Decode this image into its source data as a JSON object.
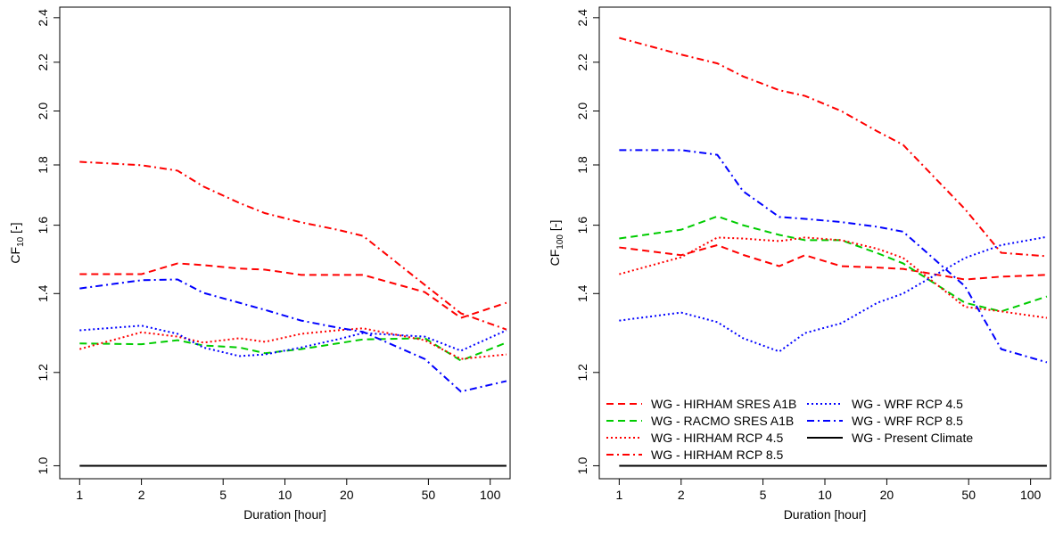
{
  "chart_data": [
    {
      "type": "line",
      "xlabel": "Duration [hour]",
      "ylabel": [
        "CF",
        "10",
        " [-]"
      ],
      "xlog": true,
      "ylog": true,
      "x": [
        1,
        2,
        3,
        4,
        6,
        8,
        12,
        18,
        24,
        48,
        72,
        120
      ],
      "xlim": [
        0.8,
        125
      ],
      "xticks": [
        1,
        2,
        5,
        10,
        20,
        50,
        100
      ],
      "ylim": [
        0.975,
        2.45
      ],
      "yticks": [
        {
          "value": 1,
          "label": "1.0"
        },
        1.2,
        1.4,
        1.6,
        1.8,
        {
          "value": 2,
          "label": "2.0"
        },
        2.2,
        2.4
      ],
      "series": [
        {
          "color": "#ff0000",
          "linestyle": "dashed",
          "values": [
            1.454,
            1.454,
            1.485,
            1.48,
            1.47,
            1.467,
            1.452,
            1.452,
            1.452,
            1.404,
            1.335,
            1.375
          ]
        },
        {
          "color": "#00cc00",
          "linestyle": "dashed",
          "values": [
            1.27,
            1.268,
            1.278,
            1.265,
            1.26,
            1.246,
            1.256,
            1.27,
            1.28,
            1.283,
            1.228,
            1.272
          ]
        },
        {
          "color": "#ff0000",
          "linestyle": "dotted",
          "values": [
            1.256,
            1.298,
            1.287,
            1.272,
            1.283,
            1.274,
            1.294,
            1.303,
            1.308,
            1.278,
            1.232,
            1.243
          ]
        },
        {
          "color": "#ff0000",
          "linestyle": "dotdash",
          "values": [
            1.811,
            1.799,
            1.78,
            1.726,
            1.671,
            1.638,
            1.609,
            1.586,
            1.567,
            1.424,
            1.347,
            1.305
          ]
        },
        {
          "color": "#0000ff",
          "linestyle": "dotted",
          "values": [
            1.303,
            1.315,
            1.294,
            1.26,
            1.239,
            1.243,
            1.26,
            1.28,
            1.296,
            1.287,
            1.252,
            1.303
          ]
        },
        {
          "color": "#0000ff",
          "linestyle": "dotdash",
          "values": [
            1.414,
            1.437,
            1.439,
            1.402,
            1.375,
            1.356,
            1.328,
            1.31,
            1.299,
            1.232,
            1.156,
            1.18
          ]
        },
        {
          "color": "#000000",
          "linestyle": "solid",
          "values": [
            1,
            1,
            1,
            1,
            1,
            1,
            1,
            1,
            1,
            1,
            1,
            1
          ]
        }
      ]
    },
    {
      "type": "line",
      "xlabel": "Duration [hour]",
      "ylabel": [
        "CF",
        "100",
        " [-]"
      ],
      "xlog": true,
      "ylog": true,
      "legend": "bottomleft",
      "x": [
        1,
        2,
        3,
        4,
        6,
        8,
        12,
        18,
        24,
        48,
        72,
        120
      ],
      "xlim": [
        0.8,
        125
      ],
      "xticks": [
        1,
        2,
        5,
        10,
        20,
        50,
        100
      ],
      "ylim": [
        0.975,
        2.45
      ],
      "yticks": [
        {
          "value": 1,
          "label": "1.0"
        },
        1.2,
        1.4,
        1.6,
        1.8,
        {
          "value": 2,
          "label": "2.0"
        },
        2.2,
        2.4
      ],
      "series": [
        {
          "name": "WG - HIRHAM SRES A1B",
          "color": "#ff0000",
          "linestyle": "dashed",
          "values": [
            1.532,
            1.509,
            1.539,
            1.51,
            1.477,
            1.509,
            1.477,
            1.473,
            1.469,
            1.439,
            1.447,
            1.452
          ]
        },
        {
          "name": "WG - RACMO SRES A1B",
          "color": "#00cc00",
          "linestyle": "dashed",
          "values": [
            1.559,
            1.586,
            1.628,
            1.6,
            1.57,
            1.554,
            1.554,
            1.515,
            1.485,
            1.375,
            1.352,
            1.392
          ]
        },
        {
          "name": "WG - HIRHAM RCP 4.5",
          "color": "#ff0000",
          "linestyle": "dotted",
          "values": [
            1.454,
            1.503,
            1.562,
            1.559,
            1.551,
            1.562,
            1.554,
            1.528,
            1.501,
            1.364,
            1.352,
            1.335
          ]
        },
        {
          "name": "WG - HIRHAM RCP 8.5",
          "color": "#ff0000",
          "linestyle": "dotdash",
          "values": [
            2.307,
            2.233,
            2.195,
            2.14,
            2.083,
            2.06,
            2.0,
            1.922,
            1.872,
            1.651,
            1.516,
            1.506
          ]
        },
        {
          "name": "WG - WRF RCP 4.5",
          "color": "#0000ff",
          "linestyle": "dotted",
          "values": [
            1.328,
            1.349,
            1.324,
            1.283,
            1.25,
            1.296,
            1.321,
            1.375,
            1.4,
            1.501,
            1.539,
            1.564
          ]
        },
        {
          "name": "WG - WRF RCP 8.5",
          "color": "#0000ff",
          "linestyle": "dotdash",
          "values": [
            1.853,
            1.853,
            1.836,
            1.71,
            1.626,
            1.62,
            1.61,
            1.595,
            1.58,
            1.42,
            1.256,
            1.224
          ]
        },
        {
          "name": "WG - Present Climate",
          "color": "#000000",
          "linestyle": "solid",
          "values": [
            1,
            1,
            1,
            1,
            1,
            1,
            1,
            1,
            1,
            1,
            1,
            1
          ]
        }
      ]
    }
  ]
}
